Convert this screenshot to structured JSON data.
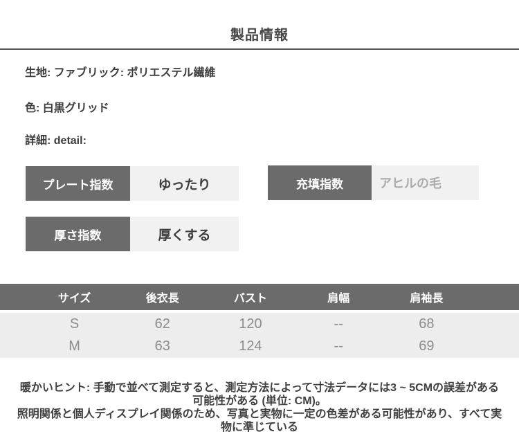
{
  "page": {
    "title": "製品情報"
  },
  "info": {
    "fabric": "生地: ファブリック: ポリエステル繊維",
    "color": "色: 白黒グリッド",
    "detail": "詳細: detail:"
  },
  "specs": [
    {
      "label": "プレート指数",
      "value": "ゆったり"
    },
    {
      "label": "充填指数",
      "value": "アヒルの毛"
    },
    {
      "label": "厚さ指数",
      "value": "厚くする"
    }
  ],
  "size_table": {
    "headers": [
      "サイズ",
      "後衣長",
      "バスト",
      "肩幅",
      "肩袖長"
    ],
    "rows": [
      [
        "S",
        "62",
        "120",
        "--",
        "68"
      ],
      [
        "M",
        "63",
        "124",
        "--",
        "69"
      ]
    ]
  },
  "notes": [
    "暖かいヒント: 手動で並べて測定すると、測定方法によって寸法データには3 ~ 5CMの誤差がある可能性がある (単位: CM)。",
    "照明関係と個人ディスプレイ関係のため、写真と実物に一定の色差がある可能性があり、すべて実物に準じている"
  ],
  "colors": {
    "dark_gray": "#6b6b6b",
    "light_cell": "#f1f1f1",
    "table_body_bg": "#ededed",
    "text_dark": "#3d3d3d",
    "muted_value": "#ababab",
    "table_text": "#8c8c8c"
  }
}
